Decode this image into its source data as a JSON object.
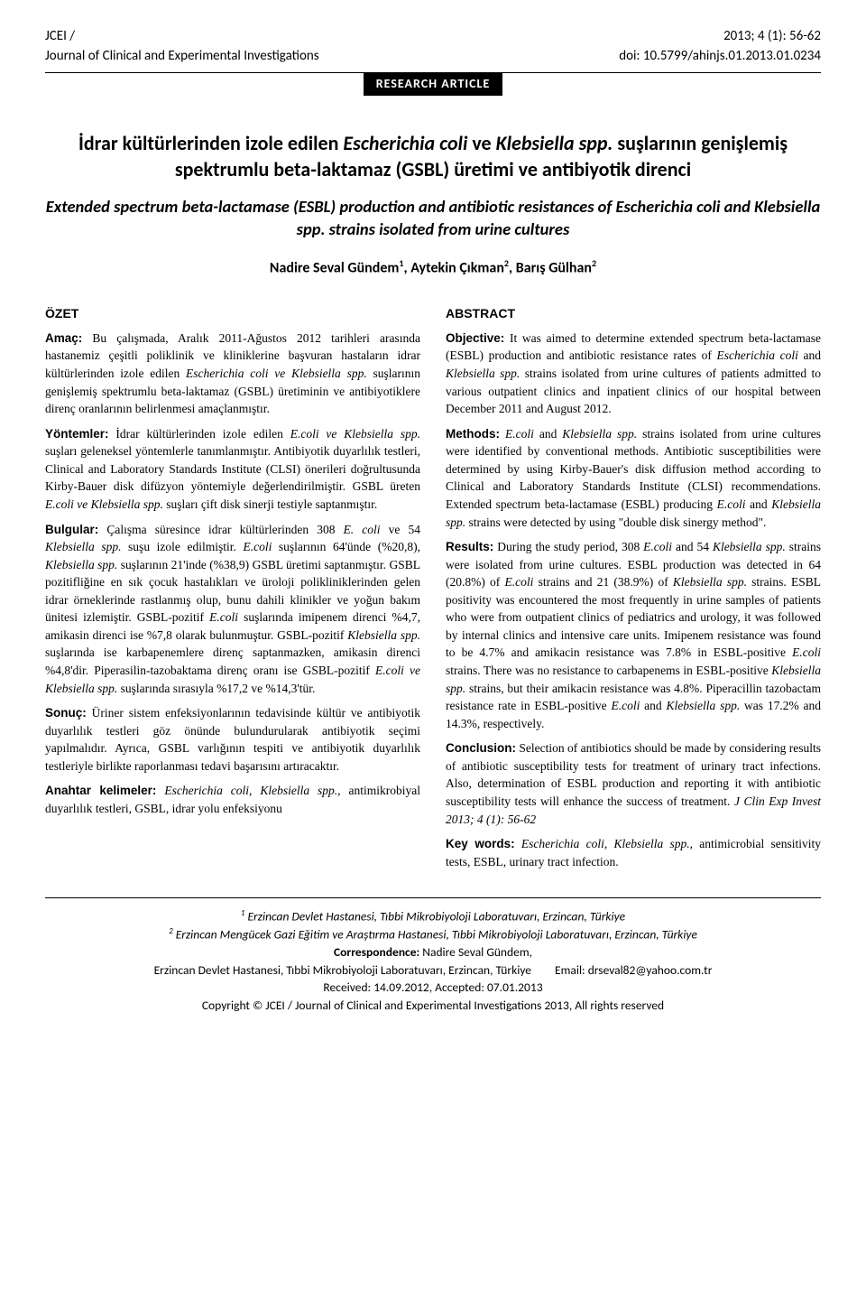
{
  "header": {
    "journal_abbrev": "JCEI /",
    "journal_full": "Journal of Clinical and Experimental Investigations",
    "issue": "2013; 4 (1): 56-62",
    "doi": "doi: 10.5799/ahinjs.01.2013.01.0234",
    "badge": "RESEARCH ARTICLE"
  },
  "title": {
    "tr_part1": "İdrar kültürlerinden izole edilen ",
    "tr_italic1": "Escherichia coli",
    "tr_mid": " ve ",
    "tr_italic2": "Klebsiella spp.",
    "tr_part2": " suşlarının genişlemiş spektrumlu beta-laktamaz (GSBL) üretimi ve antibiyotik direnci",
    "en": "Extended spectrum beta-lactamase (ESBL) production and antibiotic resistances of Escherichia coli and Klebsiella spp. strains isolated from urine cultures"
  },
  "authors": {
    "a1": "Nadire Seval Gündem",
    "a2": "Aytekin Çıkman",
    "a3": "Barış Gülhan"
  },
  "ozet": {
    "head": "ÖZET",
    "amac_lead": "Amaç:",
    "amac": " Bu çalışmada, Aralık 2011-Ağustos 2012 tarihleri arasında hastanemiz çeşitli poliklinik ve kliniklerine başvuran hastaların idrar kültürlerinden izole edilen ",
    "amac_i1": "Escherichia coli ve Klebsiella spp.",
    "amac2": " suşlarının genişlemiş spektrumlu beta-laktamaz (GSBL) üretiminin ve antibiyotiklere direnç oranlarının belirlenmesi amaçlanmıştır.",
    "yont_lead": "Yöntemler:",
    "yont1": " İdrar kültürlerinden izole edilen ",
    "yont_i1": "E.coli ve Klebsiella spp.",
    "yont2": " suşları geleneksel yöntemlerle tanımlanmıştır. Antibiyotik duyarlılık testleri, Clinical and Laboratory Standards Institute (CLSI) önerileri doğrultusunda Kirby-Bauer disk difüzyon yöntemiyle değerlendirilmiştir. GSBL üreten ",
    "yont_i2": "E.coli ve Klebsiella spp.",
    "yont3": " suşları çift disk sinerji testiyle saptanmıştır.",
    "bulg_lead": "Bulgular:",
    "bulg1": " Çalışma süresince idrar kültürlerinden 308 ",
    "bulg_i1": "E. coli",
    "bulg2": " ve 54 ",
    "bulg_i2": "Klebsiella spp.",
    "bulg3": " suşu izole edilmiştir. ",
    "bulg_i3": "E.coli",
    "bulg4": " suşlarının 64'ünde (%20,8), ",
    "bulg_i4": "Klebsiella spp.",
    "bulg5": " suşlarının 21'inde (%38,9) GSBL üretimi saptanmıştır. GSBL pozitifliğine en sık çocuk hastalıkları ve üroloji polikliniklerinden gelen idrar örneklerinde rastlanmış olup, bunu dahili klinikler ve yoğun bakım ünitesi izlemiştir. GSBL-pozitif ",
    "bulg_i5": "E.coli",
    "bulg6": " suşlarında imipenem direnci %4,7, amikasin direnci ise %7,8 olarak bulunmuştur. GSBL-pozitif ",
    "bulg_i6": "Klebsiella spp.",
    "bulg7": " suşlarında ise karbapenemlere direnç saptanmazken, amikasin direnci %4,8'dir. Piperasilin-tazobaktama direnç oranı ise GSBL-pozitif ",
    "bulg_i7": "E.coli ve Klebsiella spp.",
    "bulg8": " suşlarında sırasıyla %17,2 ve %14,3'tür.",
    "sonuc_lead": "Sonuç:",
    "sonuc": " Üriner sistem enfeksiyonlarının tedavisinde kültür ve antibiyotik duyarlılık testleri göz önünde bulundurularak antibiyotik seçimi yapılmalıdır. Ayrıca, GSBL varlığının tespiti ve antibiyotik duyarlılık testleriyle birlikte raporlanması tedavi başarısını artıracaktır.",
    "anahtar_lead": "Anahtar kelimeler:",
    "anahtar_i": " Escherichia coli, Klebsiella spp.,",
    "anahtar": " antimikrobiyal duyarlılık testleri, GSBL, idrar yolu enfeksiyonu"
  },
  "abstract": {
    "head": "ABSTRACT",
    "obj_lead": "Objective:",
    "obj1": " It was aimed to determine extended spectrum beta-lactamase (ESBL) production and antibiotic resistance rates of ",
    "obj_i1": "Escherichia coli",
    "obj2": " and ",
    "obj_i2": "Klebsiella spp.",
    "obj3": " strains isolated from urine cultures of patients admitted to various outpatient clinics and inpatient clinics of our hospital between December 2011 and August 2012.",
    "meth_lead": "Methods:",
    "meth_i1": " E.coli",
    "meth1": " and ",
    "meth_i2": "Klebsiella spp.",
    "meth2": " strains isolated from urine cultures were identified by conventional methods. Antibiotic susceptibilities were determined by using Kirby-Bauer's disk diffusion method according to Clinical and Laboratory Standards Institute (CLSI) recommendations. Extended spectrum beta-lactamase (ESBL) producing ",
    "meth_i3": "E.coli",
    "meth3": " and ",
    "meth_i4": "Klebsiella spp.",
    "meth4": " strains were detected by using \"double disk sinergy method\".",
    "res_lead": "Results:",
    "res1": " During the study period, 308 ",
    "res_i1": "E.coli",
    "res2": " and 54 ",
    "res_i2": "Klebsiella spp.",
    "res3": " strains were isolated from urine cultures. ESBL production was detected in 64 (20.8%) of ",
    "res_i3": "E.coli",
    "res4": " strains and 21 (38.9%) of ",
    "res_i4": "Klebsiella spp.",
    "res5": " strains. ESBL positivity was encountered the most frequently in urine samples of patients who were from outpatient clinics of pediatrics and urology, it was followed by internal clinics and intensive care units. Imipenem resistance was found to be 4.7% and amikacin resistance was 7.8% in ESBL-positive ",
    "res_i5": "E.coli",
    "res6": " strains. There was no resistance to carbapenems in ESBL-positive ",
    "res_i6": "Klebsiella spp.",
    "res7": " strains, but their amikacin resistance was 4.8%. Piperacillin tazobactam resistance rate in ESBL-positive ",
    "res_i7": "E.coli",
    "res8": " and ",
    "res_i8": "Klebsiella spp.",
    "res9": " was 17.2% and 14.3%, respectively.",
    "conc_lead": "Conclusion:",
    "conc": " Selection of antibiotics should be made by considering results of antibiotic susceptibility tests for treatment of urinary tract infections. Also, determination of ESBL production and reporting it with antibiotic susceptibility tests will enhance the success of treatment. ",
    "conc_cite": "J Clin Exp Invest 2013; 4 (1): 56-62",
    "key_lead": "Key words:",
    "key_i": " Escherichia coli, Klebsiella spp.,",
    "key": " antimicrobial sensitivity tests, ESBL, urinary tract infection."
  },
  "footer": {
    "aff1": "Erzincan Devlet Hastanesi, Tıbbi Mikrobiyoloji Laboratuvarı, Erzincan, Türkiye",
    "aff2": "Erzincan Mengücek Gazi Eğitim ve Araştırma Hastanesi, Tıbbi Mikrobiyoloji Laboratuvarı, Erzincan, Türkiye",
    "corr_label": "Correspondence:",
    "corr_name": " Nadire Seval Gündem,",
    "corr_addr": "Erzincan Devlet Hastanesi, Tıbbi Mikrobiyoloji Laboratuvarı, Erzincan, Türkiye",
    "corr_email": "Email: drseval82@yahoo.com.tr",
    "dates": "Received: 14.09.2012, Accepted: 07.01.2013",
    "copyright": "Copyright © JCEI / Journal of Clinical and Experimental Investigations 2013, All rights reserved"
  }
}
